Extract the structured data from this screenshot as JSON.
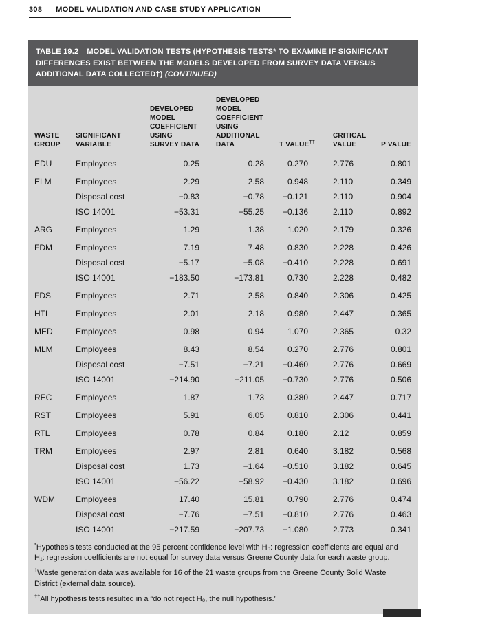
{
  "colors": {
    "title_band_bg": "#59595b",
    "title_band_text": "#ffffff",
    "table_body_bg": "#d7d7d7",
    "page_bg": "#ffffff"
  },
  "page": {
    "number": "308",
    "running_head": "MODEL VALIDATION AND CASE STUDY APPLICATION"
  },
  "table": {
    "title_label": "TABLE 19.2",
    "title_text": "MODEL VALIDATION TESTS (HYPOTHESIS TESTS* TO EXAMINE IF SIGNIFICANT DIFFERENCES EXIST BETWEEN THE MODELS DEVELOPED FROM SURVEY DATA VERSUS ADDITIONAL DATA COLLECTED†)",
    "title_continued": "(CONTINUED)",
    "columns": [
      {
        "id": "waste-group",
        "lines": [
          "WASTE",
          "GROUP"
        ]
      },
      {
        "id": "significant-variable",
        "lines": [
          "SIGNIFICANT",
          "VARIABLE"
        ]
      },
      {
        "id": "coefficient-survey-data",
        "lines": [
          "DEVELOPED",
          "MODEL",
          "COEFFICIENT",
          "USING",
          "SURVEY DATA"
        ]
      },
      {
        "id": "coefficient-additional-data",
        "lines": [
          "DEVELOPED",
          "MODEL",
          "COEFFICIENT",
          "USING",
          "ADDITIONAL",
          "DATA"
        ]
      },
      {
        "id": "t-value",
        "lines": [
          "T VALUE"
        ],
        "sup": "††"
      },
      {
        "id": "critical-value",
        "lines": [
          "CRITICAL",
          "VALUE"
        ]
      },
      {
        "id": "p-value",
        "lines": [
          "P VALUE"
        ]
      }
    ],
    "rows": [
      [
        "EDU",
        "Employees",
        "0.25",
        "0.28",
        "0.270",
        "2.776",
        "0.801"
      ],
      [
        "ELM",
        "Employees",
        "2.29",
        "2.58",
        "0.948",
        "2.110",
        "0.349"
      ],
      [
        "",
        "Disposal cost",
        "−0.83",
        "−0.78",
        "−0.121",
        "2.110",
        "0.904"
      ],
      [
        "",
        "ISO 14001",
        "−53.31",
        "−55.25",
        "−0.136",
        "2.110",
        "0.892"
      ],
      [
        "ARG",
        "Employees",
        "1.29",
        "1.38",
        "1.020",
        "2.179",
        "0.326"
      ],
      [
        "FDM",
        "Employees",
        "7.19",
        "7.48",
        "0.830",
        "2.228",
        "0.426"
      ],
      [
        "",
        "Disposal cost",
        "−5.17",
        "−5.08",
        "−0.410",
        "2.228",
        "0.691"
      ],
      [
        "",
        "ISO 14001",
        "−183.50",
        "−173.81",
        "0.730",
        "2.228",
        "0.482"
      ],
      [
        "FDS",
        "Employees",
        "2.71",
        "2.58",
        "0.840",
        "2.306",
        "0.425"
      ],
      [
        "HTL",
        "Employees",
        "2.01",
        "2.18",
        "0.980",
        "2.447",
        "0.365"
      ],
      [
        "MED",
        "Employees",
        "0.98",
        "0.94",
        "1.070",
        "2.365",
        "0.32"
      ],
      [
        "MLM",
        "Employees",
        "8.43",
        "8.54",
        "0.270",
        "2.776",
        "0.801"
      ],
      [
        "",
        "Disposal cost",
        "−7.51",
        "−7.21",
        "−0.460",
        "2.776",
        "0.669"
      ],
      [
        "",
        "ISO 14001",
        "−214.90",
        "−211.05",
        "−0.730",
        "2.776",
        "0.506"
      ],
      [
        "REC",
        "Employees",
        "1.87",
        "1.73",
        "0.380",
        "2.447",
        "0.717"
      ],
      [
        "RST",
        "Employees",
        "5.91",
        "6.05",
        "0.810",
        "2.306",
        "0.441"
      ],
      [
        "RTL",
        "Employees",
        "0.78",
        "0.84",
        "0.180",
        "2.12",
        "0.859"
      ],
      [
        "TRM",
        "Employees",
        "2.97",
        "2.81",
        "0.640",
        "3.182",
        "0.568"
      ],
      [
        "",
        "Disposal cost",
        "1.73",
        "−1.64",
        "−0.510",
        "3.182",
        "0.645"
      ],
      [
        "",
        "ISO 14001",
        "−56.22",
        "−58.92",
        "−0.430",
        "3.182",
        "0.696"
      ],
      [
        "WDM",
        "Employees",
        "17.40",
        "15.81",
        "0.790",
        "2.776",
        "0.474"
      ],
      [
        "",
        "Disposal cost",
        "−7.76",
        "−7.51",
        "−0.810",
        "2.776",
        "0.463"
      ],
      [
        "",
        "ISO 14001",
        "−217.59",
        "−207.73",
        "−1.080",
        "2.773",
        "0.341"
      ]
    ],
    "footnotes": [
      {
        "marker": "*",
        "text": "Hypothesis tests conducted at the 95 percent confidence level with H₀: regression coefficients are equal and H₁: regression coefficients are not equal for survey data versus Greene County data for each waste group."
      },
      {
        "marker": "†",
        "text": "Waste generation data was available for 16 of the 21 waste groups from the Greene County Solid Waste District (external data source)."
      },
      {
        "marker": "††",
        "text": "All hypothesis tests resulted in a “do not reject H₀, the null hypothesis.”"
      }
    ]
  }
}
